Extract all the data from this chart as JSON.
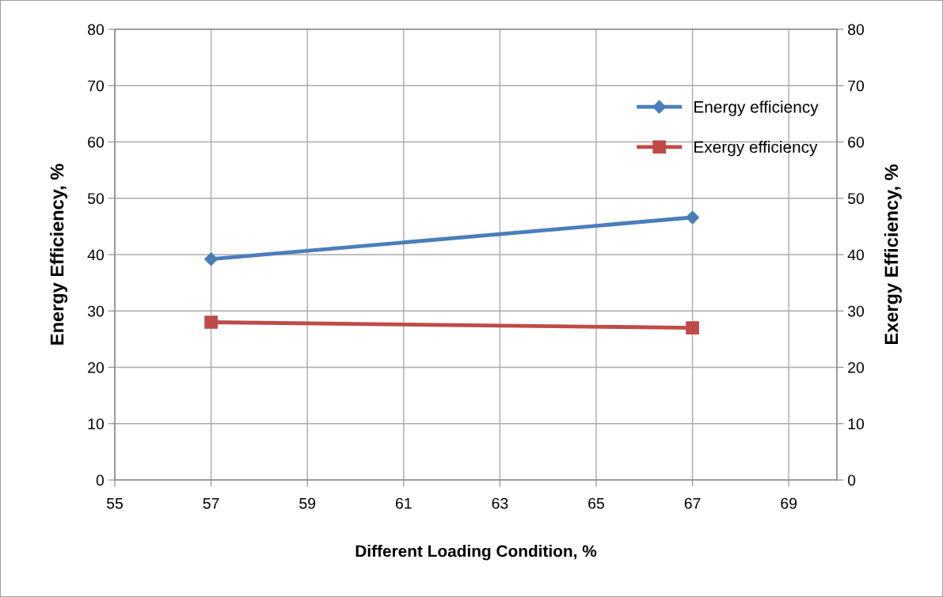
{
  "chart_data": {
    "type": "line",
    "xlabel": "Different Loading Condition, %",
    "ylabel": "Energy Efficiency, %",
    "y2label": "Exergy Efficiency, %",
    "series": [
      {
        "name": "Energy efficiency",
        "color": "#4a7ebb",
        "values": [
          39.2,
          46.6
        ],
        "marker": "diamond"
      },
      {
        "name": "Exergy efficiency",
        "color": "#be4b48",
        "values": [
          28.0,
          27.0
        ],
        "marker": "square"
      }
    ],
    "x": [
      57,
      67
    ],
    "xlim": [
      55,
      70
    ],
    "xticks": [
      55,
      57,
      59,
      61,
      63,
      65,
      67,
      69
    ],
    "ylim": [
      0,
      80
    ],
    "yticks": [
      0,
      10,
      20,
      30,
      40,
      50,
      60,
      70,
      80
    ],
    "y2lim": [
      0,
      80
    ],
    "y2ticks": [
      0,
      10,
      20,
      30,
      40,
      50,
      60,
      70,
      80
    ],
    "grid": true,
    "legend": "right",
    "line_style": "solid"
  }
}
